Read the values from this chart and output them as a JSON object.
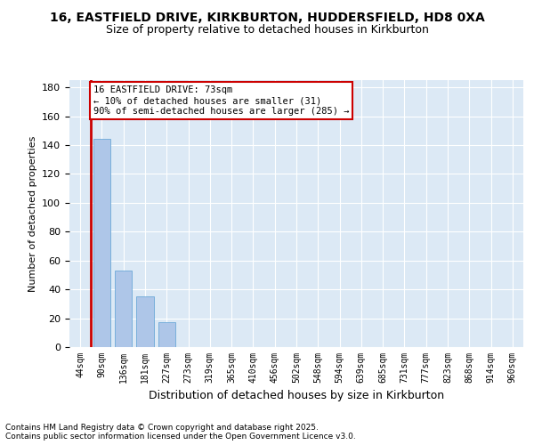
{
  "title_line1": "16, EASTFIELD DRIVE, KIRKBURTON, HUDDERSFIELD, HD8 0XA",
  "title_line2": "Size of property relative to detached houses in Kirkburton",
  "xlabel": "Distribution of detached houses by size in Kirkburton",
  "ylabel": "Number of detached properties",
  "categories": [
    "44sqm",
    "90sqm",
    "136sqm",
    "181sqm",
    "227sqm",
    "273sqm",
    "319sqm",
    "365sqm",
    "410sqm",
    "456sqm",
    "502sqm",
    "548sqm",
    "594sqm",
    "639sqm",
    "685sqm",
    "731sqm",
    "777sqm",
    "823sqm",
    "868sqm",
    "914sqm",
    "960sqm"
  ],
  "values": [
    0,
    144,
    53,
    35,
    17,
    0,
    0,
    0,
    0,
    0,
    0,
    0,
    0,
    0,
    0,
    0,
    0,
    0,
    0,
    0,
    0
  ],
  "bar_color": "#aec6e8",
  "annotation_box_text": "16 EASTFIELD DRIVE: 73sqm\n← 10% of detached houses are smaller (31)\n90% of semi-detached houses are larger (285) →",
  "ylim": [
    0,
    185
  ],
  "yticks": [
    0,
    20,
    40,
    60,
    80,
    100,
    120,
    140,
    160,
    180
  ],
  "background_color": "#dce9f5",
  "bar_edge_color": "#5a9fd4",
  "red_line_color": "#cc0000",
  "footer_line1": "Contains HM Land Registry data © Crown copyright and database right 2025.",
  "footer_line2": "Contains public sector information licensed under the Open Government Licence v3.0."
}
